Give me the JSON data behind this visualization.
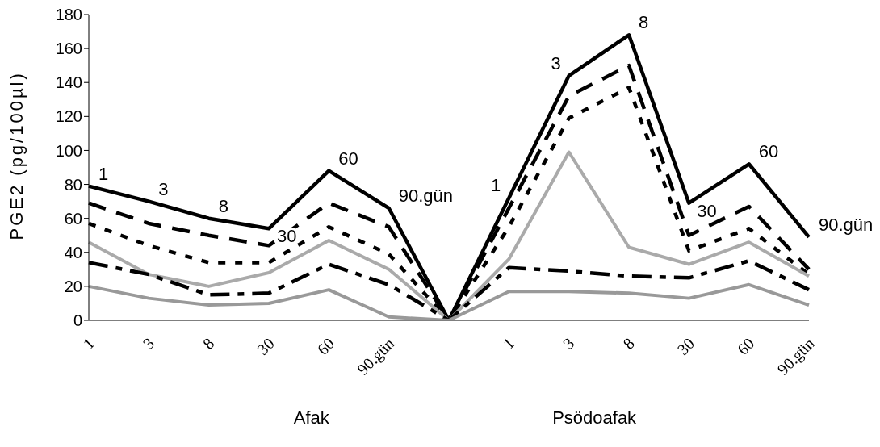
{
  "chart_data": {
    "type": "line",
    "ylabel": "PGE2  (pg/100µl)",
    "categories": [
      "1",
      "3",
      "8",
      "30",
      "60",
      "90.gün",
      null,
      "1",
      "3",
      "8",
      "30",
      "60",
      "90.gün"
    ],
    "ylim": [
      0,
      180
    ],
    "yticks": [
      0,
      20,
      40,
      60,
      80,
      100,
      120,
      140,
      160,
      180
    ],
    "grid": false,
    "legend": false,
    "marker": "none",
    "series": [
      {
        "color": "#000000",
        "line_style": "solid",
        "values": [
          79,
          70,
          60,
          54,
          88,
          66,
          0,
          72,
          144,
          168,
          69,
          92,
          49
        ]
      },
      {
        "color": "#000000",
        "line_style": "dashed",
        "values": [
          69,
          57,
          50,
          44,
          69,
          55,
          0,
          66,
          132,
          150,
          50,
          67,
          30
        ]
      },
      {
        "color": "#000000",
        "line_style": "dotted",
        "values": [
          57,
          44,
          34,
          34,
          55,
          39,
          0,
          55,
          119,
          137,
          41,
          54,
          27
        ]
      },
      {
        "color": "#aaaaaa",
        "line_style": "solid",
        "values": [
          46,
          27,
          20,
          28,
          47,
          30,
          0,
          36,
          99,
          43,
          33,
          46,
          26
        ]
      },
      {
        "color": "#000000",
        "line_style": "dashdot",
        "values": [
          34,
          27,
          15,
          16,
          33,
          21,
          0,
          31,
          29,
          26,
          25,
          35,
          18
        ]
      },
      {
        "color": "#999999",
        "line_style": "solid",
        "values": [
          20,
          13,
          9,
          10,
          18,
          2,
          0,
          17,
          17,
          16,
          13,
          21,
          9
        ]
      }
    ],
    "annotations": [
      "1",
      "3",
      "8",
      "30",
      "60",
      "90.gün",
      "1",
      "3",
      "8",
      "30",
      "60",
      "90.gün",
      "Afak",
      "Psödoafak"
    ]
  }
}
